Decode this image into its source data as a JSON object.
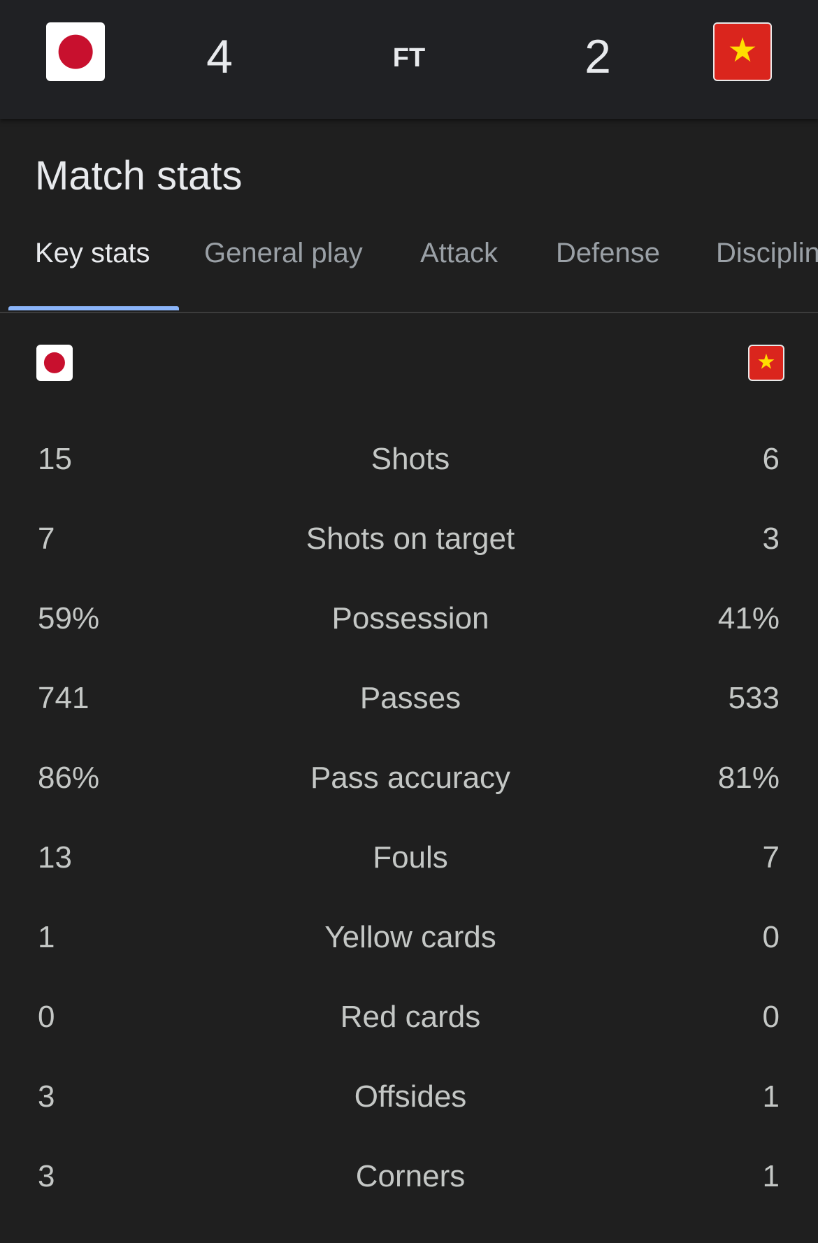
{
  "match": {
    "home": {
      "team_flag": "japan-flag",
      "score": "4"
    },
    "away": {
      "team_flag": "vietnam-flag",
      "score": "2"
    },
    "status": "FT"
  },
  "title": "Match stats",
  "tabs": [
    {
      "label": "Key stats",
      "active": true
    },
    {
      "label": "General play"
    },
    {
      "label": "Attack"
    },
    {
      "label": "Defense"
    },
    {
      "label": "Disciplin"
    }
  ],
  "colors": {
    "accent": "#8ab4f8",
    "background": "#1f1f1f",
    "header": "#202124"
  },
  "stats": [
    {
      "label": "Shots",
      "home": "15",
      "away": "6"
    },
    {
      "label": "Shots on target",
      "home": "7",
      "away": "3"
    },
    {
      "label": "Possession",
      "home": "59%",
      "away": "41%"
    },
    {
      "label": "Passes",
      "home": "741",
      "away": "533"
    },
    {
      "label": "Pass accuracy",
      "home": "86%",
      "away": "81%"
    },
    {
      "label": "Fouls",
      "home": "13",
      "away": "7"
    },
    {
      "label": "Yellow cards",
      "home": "1",
      "away": "0"
    },
    {
      "label": "Red cards",
      "home": "0",
      "away": "0"
    },
    {
      "label": "Offsides",
      "home": "3",
      "away": "1"
    },
    {
      "label": "Corners",
      "home": "3",
      "away": "1"
    }
  ]
}
